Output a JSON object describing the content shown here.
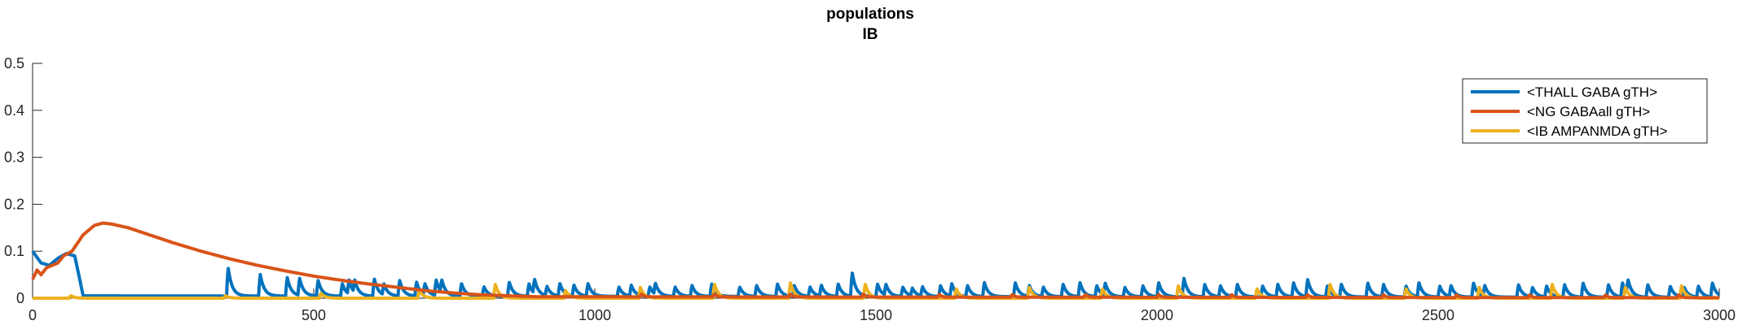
{
  "chart_data": {
    "type": "line",
    "title": "populations",
    "subtitle": "IB",
    "xlabel": "",
    "ylabel": "",
    "xlim": [
      0,
      3000
    ],
    "ylim": [
      0,
      0.5
    ],
    "xticks": [
      0,
      500,
      1000,
      1500,
      2000,
      2500,
      3000
    ],
    "yticks": [
      0,
      0.1,
      0.2,
      0.3,
      0.4,
      0.5
    ],
    "xtick_labels": [
      "0",
      "500",
      "1000",
      "1500",
      "2000",
      "2500",
      "3000"
    ],
    "ytick_labels": [
      "0",
      "0.1",
      "0.2",
      "0.3",
      "0.4",
      "0.5"
    ],
    "grid": false,
    "legend_position": "top-right",
    "series": [
      {
        "name": "<THALL GABA gTH>",
        "color": "#0072BD",
        "baseline": [
          [
            0,
            0.1
          ],
          [
            15,
            0.075
          ],
          [
            30,
            0.07
          ],
          [
            45,
            0.085
          ],
          [
            60,
            0.095
          ],
          [
            75,
            0.09
          ],
          [
            90,
            0.005
          ],
          [
            3000,
            0.002
          ]
        ],
        "spike_times": [
          345,
          402,
          450,
          472,
          505,
          548,
          560,
          570,
          605,
          622,
          650,
          680,
          695,
          715,
          725,
          760,
          800,
          845,
          880,
          890,
          912,
          935,
          960,
          985,
          1040,
          1062,
          1095,
          1105,
          1140,
          1170,
          1205,
          1255,
          1285,
          1322,
          1352,
          1380,
          1400,
          1430,
          1455,
          1500,
          1515,
          1545,
          1562,
          1580,
          1612,
          1632,
          1660,
          1690,
          1745,
          1770,
          1795,
          1830,
          1860,
          1890,
          1905,
          1940,
          1972,
          2000,
          2045,
          2082,
          2110,
          2140,
          2185,
          2212,
          2240,
          2265,
          2300,
          2325,
          2372,
          2400,
          2440,
          2463,
          2500,
          2520,
          2560,
          2580,
          2640,
          2665,
          2690,
          2722,
          2755,
          2800,
          2825,
          2835,
          2870,
          2910,
          2935,
          2960,
          2985
        ],
        "spike_heights": [
          0.09,
          0.07,
          0.06,
          0.055,
          0.05,
          0.04,
          0.045,
          0.04,
          0.055,
          0.035,
          0.05,
          0.045,
          0.035,
          0.05,
          0.04,
          0.04,
          0.03,
          0.045,
          0.04,
          0.045,
          0.03,
          0.04,
          0.035,
          0.04,
          0.03,
          0.035,
          0.03,
          0.035,
          0.03,
          0.035,
          0.04,
          0.03,
          0.035,
          0.04,
          0.035,
          0.03,
          0.035,
          0.04,
          0.075,
          0.04,
          0.035,
          0.03,
          0.025,
          0.03,
          0.035,
          0.04,
          0.035,
          0.045,
          0.045,
          0.035,
          0.03,
          0.04,
          0.045,
          0.035,
          0.04,
          0.03,
          0.035,
          0.045,
          0.06,
          0.04,
          0.035,
          0.04,
          0.035,
          0.04,
          0.045,
          0.055,
          0.035,
          0.04,
          0.045,
          0.04,
          0.035,
          0.045,
          0.035,
          0.035,
          0.045,
          0.035,
          0.04,
          0.03,
          0.035,
          0.04,
          0.045,
          0.04,
          0.045,
          0.045,
          0.04,
          0.035,
          0.03,
          0.035,
          0.045
        ]
      },
      {
        "name": "<NG GABAall gTH>",
        "color": "#D95319",
        "curve": [
          [
            0,
            0.04
          ],
          [
            8,
            0.06
          ],
          [
            15,
            0.05
          ],
          [
            25,
            0.065
          ],
          [
            35,
            0.07
          ],
          [
            45,
            0.075
          ],
          [
            55,
            0.09
          ],
          [
            70,
            0.1
          ],
          [
            90,
            0.135
          ],
          [
            110,
            0.155
          ],
          [
            125,
            0.16
          ],
          [
            140,
            0.158
          ],
          [
            170,
            0.15
          ],
          [
            200,
            0.138
          ],
          [
            250,
            0.118
          ],
          [
            300,
            0.1
          ],
          [
            350,
            0.084
          ],
          [
            400,
            0.07
          ],
          [
            450,
            0.058
          ],
          [
            500,
            0.047
          ],
          [
            550,
            0.038
          ],
          [
            600,
            0.03
          ],
          [
            650,
            0.023
          ],
          [
            700,
            0.016
          ],
          [
            750,
            0.011
          ],
          [
            800,
            0.007
          ],
          [
            850,
            0.005
          ],
          [
            900,
            0.003
          ],
          [
            3000,
            0.001
          ]
        ],
        "spike_times": [
          1080,
          1210,
          1345,
          1475,
          1610,
          1740,
          1870,
          2000,
          2130,
          2265,
          2400,
          2530,
          2660,
          2795,
          2925
        ],
        "spike_heights": [
          0.012,
          0.012,
          0.012,
          0.012,
          0.012,
          0.012,
          0.012,
          0.012,
          0.012,
          0.012,
          0.012,
          0.012,
          0.012,
          0.012,
          0.012
        ]
      },
      {
        "name": "<IB AMPANMDA gTH>",
        "color": "#EDB120",
        "baseline": [
          [
            0,
            0.0
          ],
          [
            3000,
            0.0
          ]
        ],
        "spike_times": [
          65,
          340,
          510,
          685,
          820,
          945,
          1078,
          1210,
          1345,
          1478,
          1640,
          1770,
          1900,
          2035,
          2175,
          2305,
          2440,
          2570,
          2700,
          2830,
          2930
        ],
        "spike_heights": [
          0.008,
          0.008,
          0.016,
          0.025,
          0.045,
          0.025,
          0.035,
          0.045,
          0.05,
          0.045,
          0.03,
          0.035,
          0.03,
          0.04,
          0.03,
          0.045,
          0.03,
          0.035,
          0.045,
          0.035,
          0.04
        ]
      }
    ]
  }
}
